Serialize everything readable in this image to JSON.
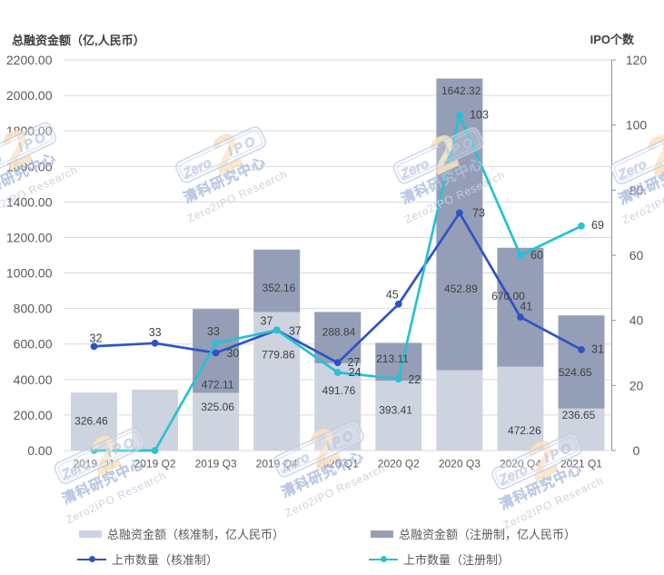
{
  "chart_data": {
    "type": "combo-stacked-bar-line",
    "categories": [
      "2019 Q1",
      "2019 Q2",
      "2019 Q3",
      "2019 Q4",
      "2020 Q1",
      "2020 Q2",
      "2020 Q3",
      "2020 Q4",
      "2021 Q1"
    ],
    "bar_series": [
      {
        "name": "总融资金额（核准制，亿人民币）",
        "color": "#cdd3df",
        "values": [
          326.46,
          343,
          325.06,
          779.86,
          491.76,
          393.41,
          452.89,
          472.26,
          236.65
        ],
        "labels": [
          "326.46",
          null,
          "325.06",
          "779.86",
          "491.76",
          "393.41",
          "452.89",
          "472.26",
          "236.65"
        ]
      },
      {
        "name": "总融资金额（注册制，亿人民币）",
        "color": "#949eb6",
        "values": [
          0,
          0,
          472.11,
          352.16,
          288.84,
          213.11,
          1642.32,
          670.0,
          524.65
        ],
        "labels": [
          null,
          null,
          "472.11",
          "352.16",
          "288.84",
          "213.11",
          "1642.32",
          "670.00",
          "524.65"
        ]
      }
    ],
    "line_series": [
      {
        "name": "上市数量（核准制）",
        "color": "#2e53c6",
        "values": [
          32,
          33,
          30,
          37,
          27,
          45,
          73,
          41,
          31
        ],
        "labels": [
          "32",
          "33",
          "30",
          "37",
          "27",
          "45",
          "73",
          "41",
          "31"
        ]
      },
      {
        "name": "上市数量（注册制）",
        "color": "#28c0d3",
        "values": [
          0,
          0,
          33,
          37,
          24,
          22,
          103,
          60,
          69
        ],
        "labels": [
          null,
          null,
          "33",
          "37",
          "24",
          "22",
          "103",
          "60",
          "69"
        ]
      }
    ],
    "left_axis": {
      "title": "总融资金额（亿,人民币）",
      "min": 0,
      "max": 2200,
      "step": 200,
      "decimals": 2
    },
    "right_axis": {
      "title": "IPO个数",
      "min": 0,
      "max": 120,
      "step": 20
    },
    "grid": true,
    "legend_position": "bottom",
    "colors": {
      "gridline": "#d9d9d9",
      "axis_line": "#919191",
      "tick_label": "#595959",
      "data_label": "#404040",
      "title": "#3f3f3f"
    }
  },
  "watermark": {
    "badge_zero": "Zero",
    "badge_two": "2",
    "badge_ipo": "IPO",
    "line2": "清科研究中心",
    "line3": "Zero2IPO Research",
    "blue": "#5a7ac8",
    "orange": "#f2a944"
  }
}
